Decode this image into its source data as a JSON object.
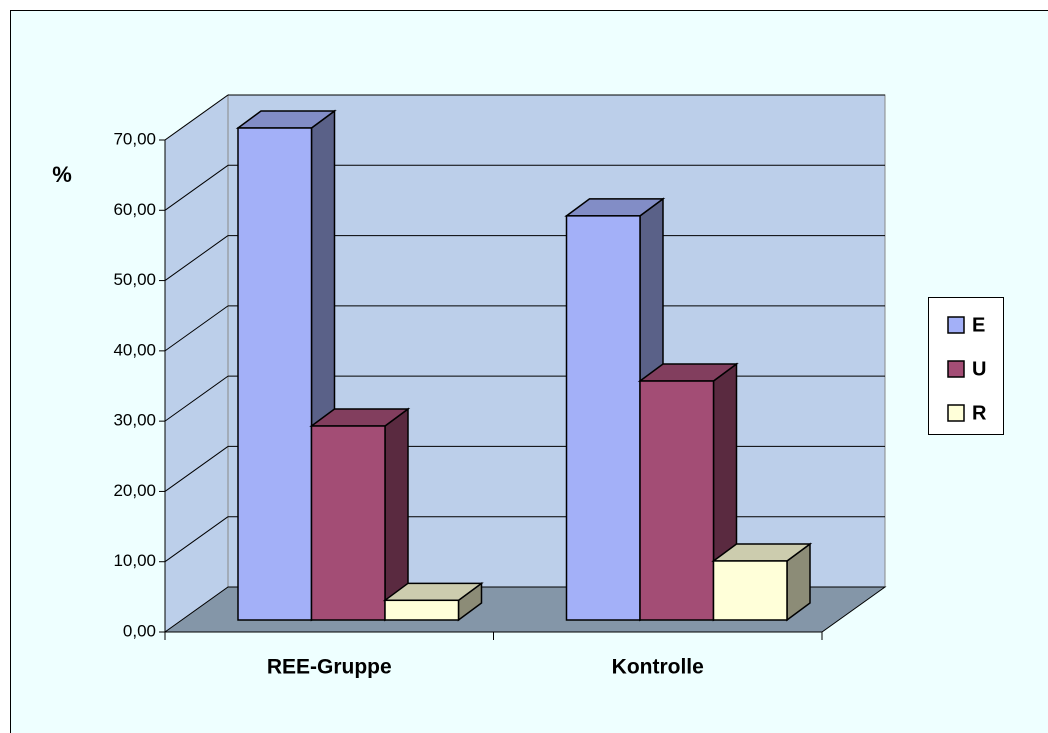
{
  "chart_data": {
    "type": "bar3d",
    "y_label": "%",
    "categories": [
      "REE-Gruppe",
      "Kontrolle"
    ],
    "series": [
      {
        "name": "E",
        "color": "#a3b0f8",
        "values": [
          70.0,
          57.5
        ]
      },
      {
        "name": "U",
        "color": "#a34d75",
        "values": [
          27.6,
          34.0
        ]
      },
      {
        "name": "R",
        "color": "#ffffd9",
        "values": [
          2.8,
          8.4
        ]
      }
    ],
    "ylim": [
      0,
      70
    ],
    "yticks": [
      {
        "value": 0,
        "label": "0,00"
      },
      {
        "value": 10,
        "label": "10,00"
      },
      {
        "value": 20,
        "label": "20,00"
      },
      {
        "value": 30,
        "label": "30,00"
      },
      {
        "value": 40,
        "label": "40,00"
      },
      {
        "value": 50,
        "label": "50,00"
      },
      {
        "value": 60,
        "label": "60,00"
      },
      {
        "value": 70,
        "label": "70,00"
      }
    ],
    "grid": true,
    "legend": "right"
  }
}
